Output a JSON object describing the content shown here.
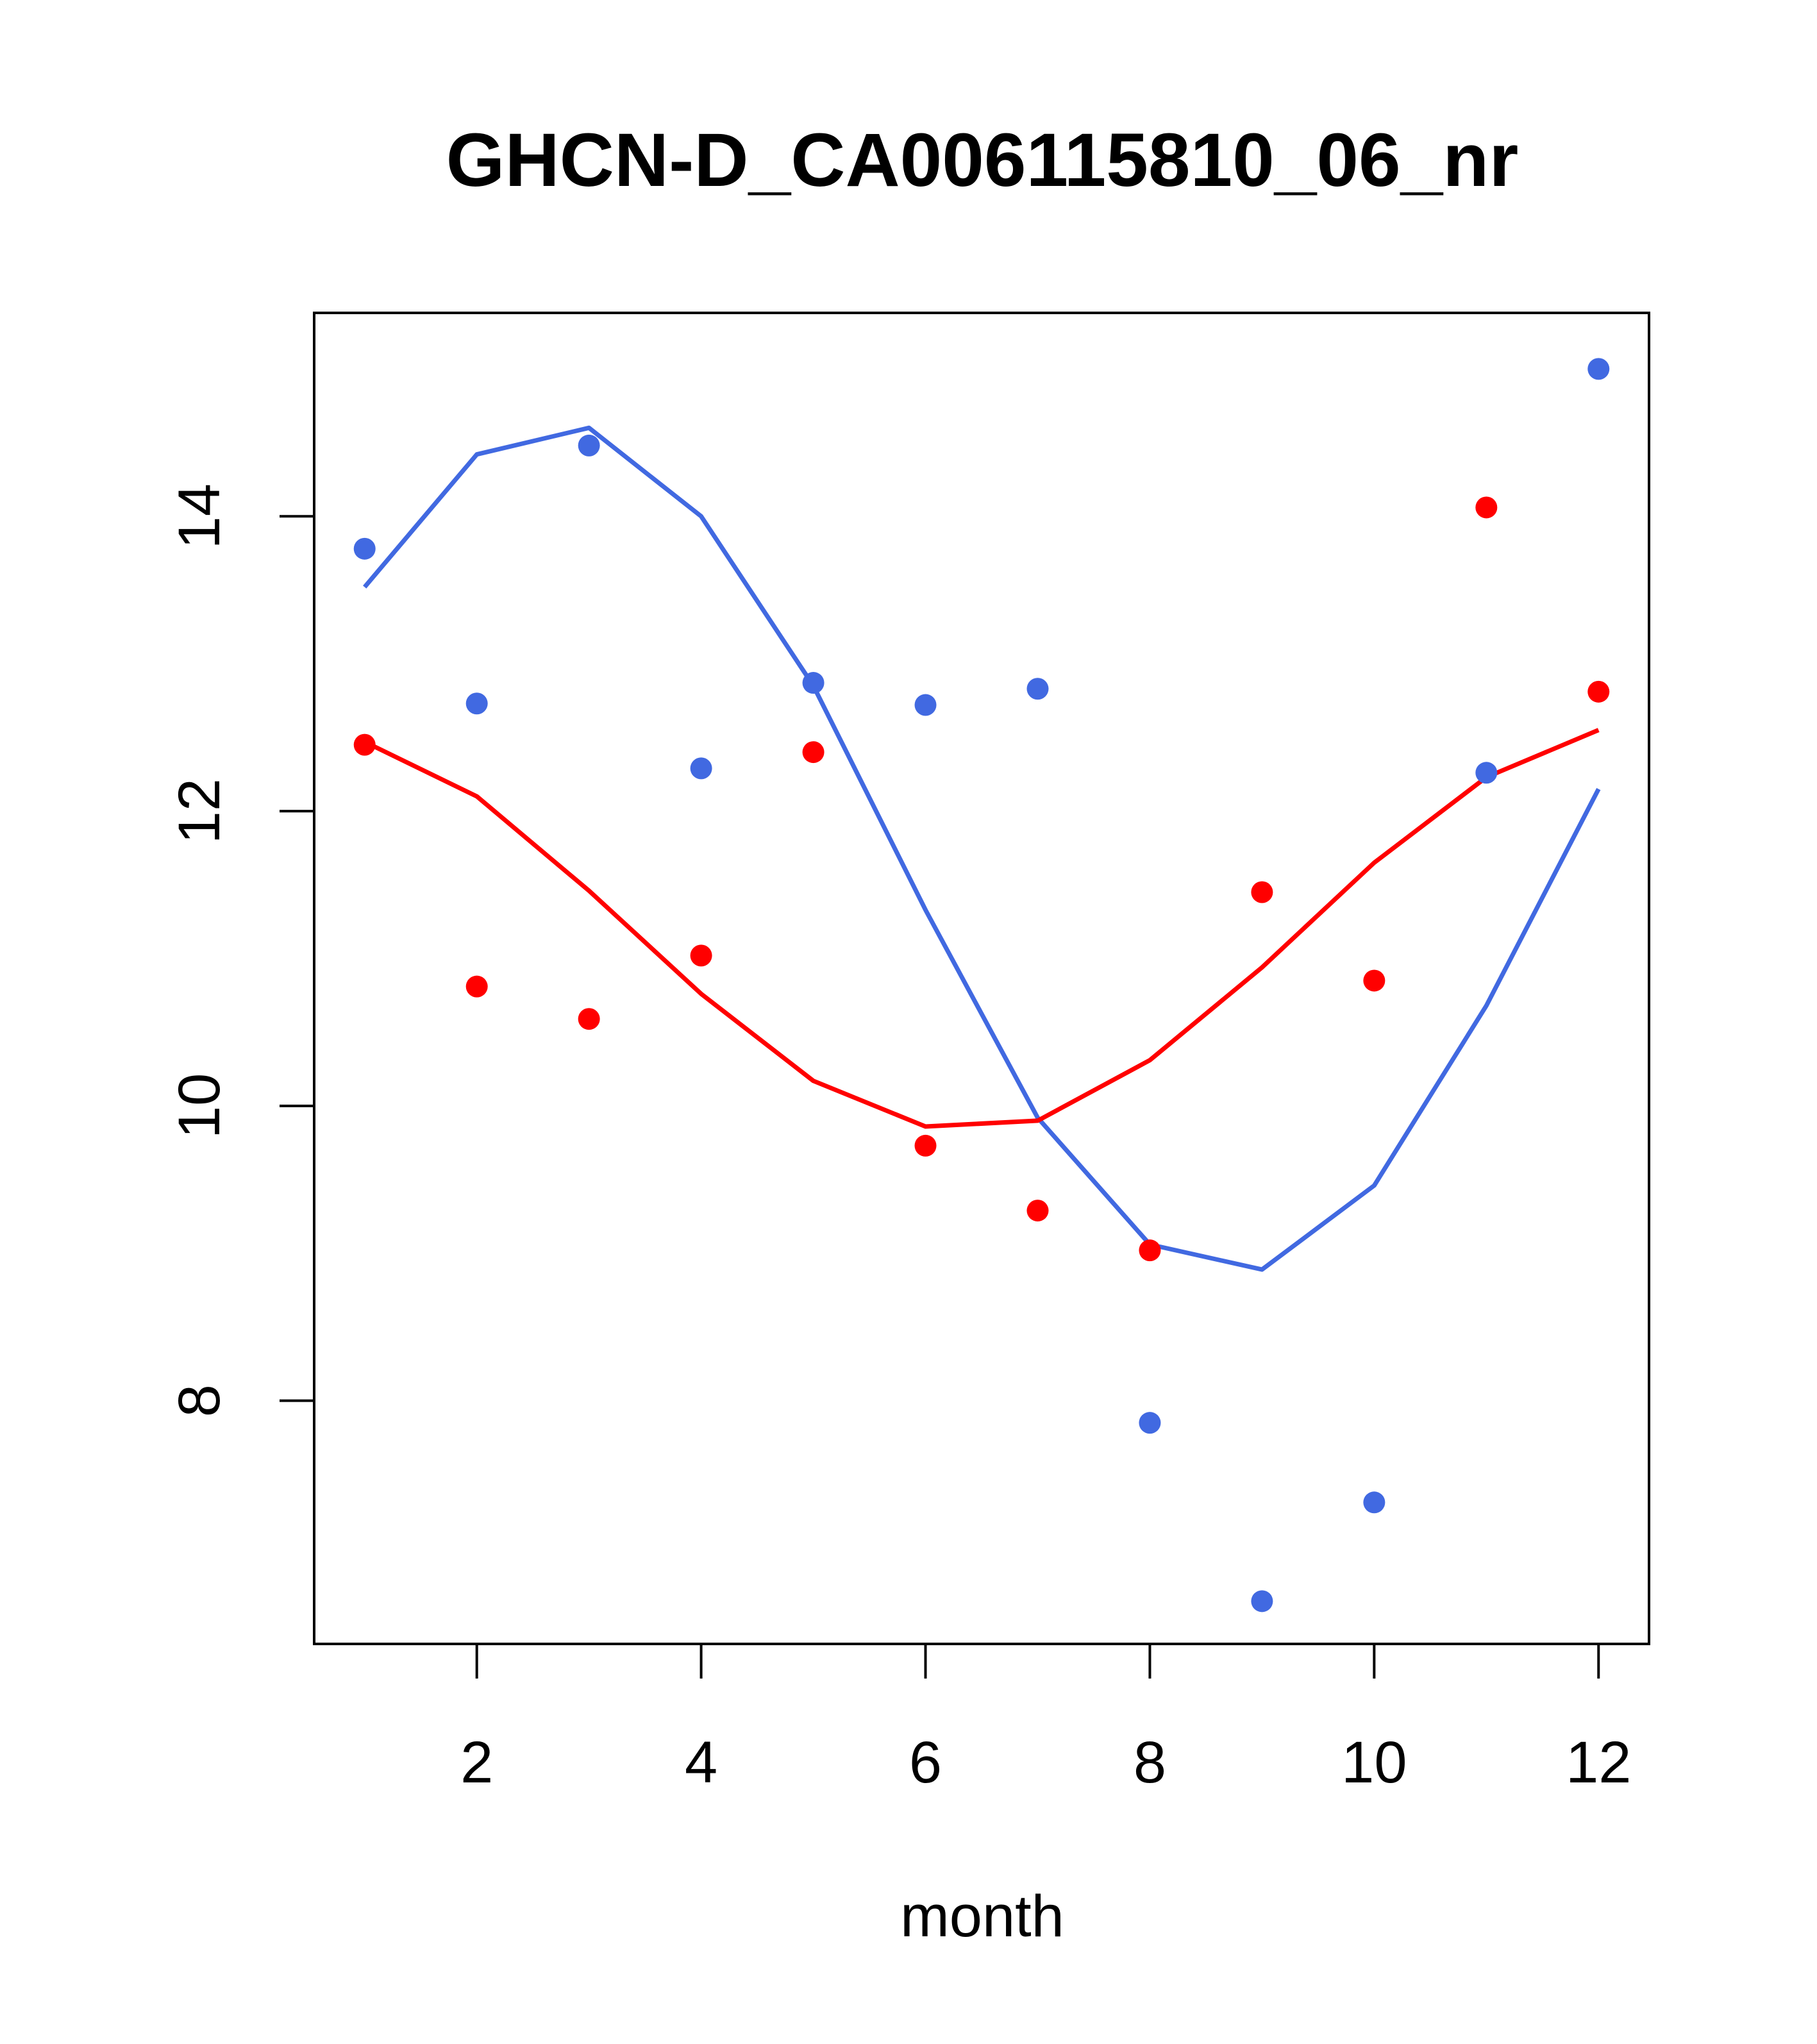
{
  "chart_data": {
    "type": "scatter",
    "title": "GHCN-D_CA006115810_06_nr",
    "xlabel": "month",
    "ylabel": "",
    "xlim": [
      0.55,
      12.45
    ],
    "ylim": [
      6.35,
      15.38
    ],
    "x_ticks": [
      2,
      4,
      6,
      8,
      10,
      12
    ],
    "y_ticks": [
      8,
      10,
      12,
      14
    ],
    "grid": false,
    "series": [
      {
        "color": "#4169e1",
        "x": [
          1,
          2,
          3,
          4,
          5,
          6,
          7,
          8,
          9,
          10,
          11,
          12
        ],
        "points": [
          13.78,
          12.73,
          14.48,
          12.29,
          12.87,
          12.72,
          12.83,
          7.85,
          6.64,
          7.31,
          12.26,
          15.0
        ],
        "line": [
          13.52,
          14.42,
          14.6,
          14.0,
          12.85,
          11.33,
          9.92,
          9.06,
          8.89,
          9.46,
          10.68,
          12.15
        ]
      },
      {
        "color": "#ff0000",
        "x": [
          1,
          2,
          3,
          4,
          5,
          6,
          7,
          8,
          9,
          10,
          11,
          12
        ],
        "points": [
          12.45,
          10.81,
          10.59,
          11.02,
          12.4,
          9.73,
          9.29,
          9.02,
          11.45,
          10.85,
          14.06,
          12.81
        ],
        "line": [
          12.47,
          12.1,
          11.46,
          10.76,
          10.17,
          9.86,
          9.9,
          10.31,
          10.94,
          11.65,
          12.23,
          12.55
        ]
      }
    ]
  }
}
